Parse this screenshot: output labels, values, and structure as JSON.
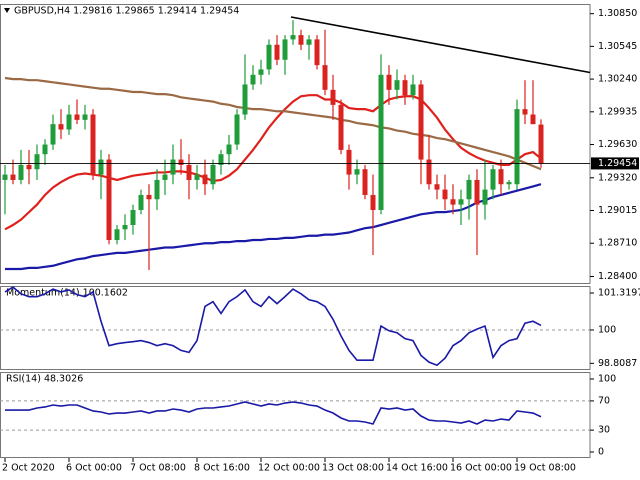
{
  "chart_data": [
    {
      "type": "candlestick",
      "title": "GBPUSD,H4  1.29816 1.29865 1.29414 1.29454",
      "categories": [
        "2 Oct 2020",
        null,
        null,
        null,
        null,
        null,
        null,
        null,
        "6 Oct 00:00",
        null,
        null,
        null,
        null,
        null,
        null,
        null,
        "7 Oct 08:00",
        null,
        null,
        null,
        null,
        null,
        null,
        null,
        "8 Oct 16:00",
        null,
        null,
        null,
        null,
        null,
        null,
        null,
        "12 Oct 00:00",
        null,
        null,
        null,
        null,
        null,
        null,
        null,
        "13 Oct 08:00",
        null,
        null,
        null,
        null,
        null,
        null,
        null,
        "14 Oct 16:00",
        null,
        null,
        null,
        null,
        null,
        null,
        null,
        "16 Oct 00:00",
        null,
        null,
        null,
        null,
        null,
        null,
        null,
        "19 Oct 08:00",
        null,
        null,
        null
      ],
      "open": [
        1.293,
        1.2935,
        1.293,
        1.2944,
        1.294,
        1.2954,
        1.2963,
        1.2982,
        1.2977,
        1.2991,
        1.2986,
        1.2991,
        1.2935,
        1.2949,
        1.2874,
        1.2884,
        1.2888,
        1.2902,
        1.2916,
        1.2912,
        1.293,
        1.2935,
        1.2949,
        1.2944,
        1.293,
        1.2935,
        1.2926,
        1.2944,
        1.2954,
        1.2963,
        1.2991,
        1.3019,
        1.3028,
        1.3033,
        1.3056,
        1.3042,
        1.3061,
        1.3065,
        1.3056,
        1.3061,
        1.3037,
        1.3014,
        1.3,
        1.2958,
        1.2935,
        1.294,
        1.2916,
        1.2902,
        1.3028,
        1.3014,
        1.3023,
        1.3009,
        1.3019,
        1.2949,
        1.2926,
        1.2921,
        1.2912,
        1.2907,
        1.2912,
        1.293,
        1.2907,
        1.2921,
        1.294,
        1.2926,
        1.2926,
        1.2996,
        1.2991,
        1.29816
      ],
      "high": [
        1.2944,
        1.2949,
        1.2958,
        1.2958,
        1.2963,
        1.2968,
        1.2991,
        1.2996,
        1.3,
        1.3005,
        1.3,
        1.2996,
        1.2958,
        1.2954,
        1.2888,
        1.2898,
        1.2907,
        1.2921,
        1.2926,
        1.294,
        1.2949,
        1.2963,
        1.2968,
        1.2954,
        1.2944,
        1.2949,
        1.2949,
        1.2958,
        1.2972,
        1.2996,
        1.3047,
        1.3037,
        1.3042,
        1.3061,
        1.3065,
        1.3065,
        1.3079,
        1.307,
        1.3065,
        1.3065,
        1.307,
        1.3028,
        1.3005,
        1.2963,
        1.2949,
        1.2944,
        1.2935,
        1.3047,
        1.3037,
        1.3033,
        1.3028,
        1.3028,
        1.3023,
        1.2972,
        1.2935,
        1.2935,
        1.2926,
        1.2921,
        1.2935,
        1.294,
        1.2949,
        1.2944,
        1.2949,
        1.293,
        1.3005,
        1.3023,
        1.3023,
        1.29865
      ],
      "low": [
        1.2898,
        1.2926,
        1.2926,
        1.2926,
        1.293,
        1.2944,
        1.2958,
        1.2968,
        1.2972,
        1.2982,
        1.2977,
        1.293,
        1.2912,
        1.287,
        1.287,
        1.2874,
        1.2879,
        1.2898,
        1.2846,
        1.2902,
        1.2916,
        1.2926,
        1.2935,
        1.2912,
        1.2921,
        1.2916,
        1.2921,
        1.2935,
        1.2944,
        1.2958,
        1.2986,
        1.3014,
        1.3019,
        1.3028,
        1.3037,
        1.3028,
        1.3056,
        1.3051,
        1.3042,
        1.3033,
        1.3009,
        1.2986,
        1.2954,
        1.2921,
        1.2926,
        1.2912,
        1.286,
        1.2898,
        1.3,
        1.3005,
        1.3,
        1.3005,
        1.2926,
        1.2921,
        1.2912,
        1.2902,
        1.2898,
        1.2888,
        1.2893,
        1.286,
        1.2893,
        1.2912,
        1.2916,
        1.2921,
        1.2921,
        1.2982,
        1.2982,
        1.29414
      ],
      "close": [
        1.2935,
        1.293,
        1.2944,
        1.294,
        1.2954,
        1.2963,
        1.2982,
        1.2977,
        1.2991,
        1.2986,
        1.2991,
        1.2935,
        1.2949,
        1.2874,
        1.2884,
        1.2888,
        1.2902,
        1.2916,
        1.2912,
        1.293,
        1.2935,
        1.2949,
        1.2944,
        1.293,
        1.2935,
        1.2926,
        1.2944,
        1.2954,
        1.2963,
        1.2991,
        1.3019,
        1.3028,
        1.3033,
        1.3056,
        1.3042,
        1.3061,
        1.3065,
        1.3056,
        1.3061,
        1.3037,
        1.3014,
        1.3,
        1.2958,
        1.2935,
        1.294,
        1.2916,
        1.2902,
        1.3028,
        1.3014,
        1.3023,
        1.3009,
        1.3019,
        1.2949,
        1.2926,
        1.2921,
        1.2912,
        1.2907,
        1.2912,
        1.293,
        1.2907,
        1.2921,
        1.294,
        1.2926,
        1.2928,
        1.2996,
        1.2991,
        1.2982,
        1.29454
      ],
      "up_color": "#1f9d3a",
      "down_color": "#d8231f",
      "lines": [
        {
          "color": "#e0201c",
          "values": [
            1.2884,
            1.2888,
            1.2893,
            1.29,
            1.2907,
            1.2916,
            1.2923,
            1.2928,
            1.2932,
            1.2935,
            1.2936,
            1.2935,
            1.2934,
            1.2932,
            1.293,
            1.2932,
            1.2934,
            1.2935,
            1.2936,
            1.2937,
            1.2937,
            1.2938,
            1.2938,
            1.2937,
            1.2935,
            1.2932,
            1.2929,
            1.293,
            1.2934,
            1.294,
            1.2949,
            1.2958,
            1.2968,
            1.2979,
            1.2988,
            1.2996,
            1.3003,
            1.3008,
            1.3009,
            1.3009,
            1.3005,
            1.3005,
            1.3002,
            1.2997,
            1.2996,
            1.2996,
            1.2994,
            1.3,
            1.3005,
            1.3007,
            1.3008,
            1.3008,
            1.3005,
            1.2997,
            1.2988,
            1.2977,
            1.2968,
            1.296,
            1.2955,
            1.2951,
            1.2948,
            1.2946,
            1.2944,
            1.2944,
            1.2949,
            1.2954,
            1.2956,
            1.295
          ]
        },
        {
          "color": "#9b6a45",
          "values": [
            1.3025,
            1.3024,
            1.3024,
            1.3023,
            1.3023,
            1.3022,
            1.3021,
            1.302,
            1.3019,
            1.3018,
            1.3017,
            1.3016,
            1.3015,
            1.3015,
            1.3014,
            1.3013,
            1.3012,
            1.3012,
            1.3011,
            1.301,
            1.301,
            1.3009,
            1.3007,
            1.3006,
            1.3005,
            1.3004,
            1.3003,
            1.3001,
            1.3,
            1.2998,
            1.2997,
            1.2996,
            1.2996,
            1.2995,
            1.2994,
            1.2994,
            1.2993,
            1.2992,
            1.2991,
            1.299,
            1.2989,
            1.2988,
            1.2986,
            1.2985,
            1.2983,
            1.2982,
            1.2981,
            1.2979,
            1.2978,
            1.2976,
            1.2975,
            1.2973,
            1.2972,
            1.2971,
            1.2969,
            1.2968,
            1.2966,
            1.2964,
            1.2962,
            1.296,
            1.2958,
            1.2956,
            1.2954,
            1.2952,
            1.2949,
            1.2946,
            1.2943,
            1.294
          ]
        },
        {
          "color": "#1a1aa8",
          "values": [
            1.2847,
            1.2847,
            1.2847,
            1.2848,
            1.2848,
            1.2849,
            1.285,
            1.2852,
            1.2854,
            1.2856,
            1.2857,
            1.2859,
            1.286,
            1.2861,
            1.2862,
            1.2862,
            1.2863,
            1.2864,
            1.2865,
            1.2866,
            1.2867,
            1.2867,
            1.2868,
            1.2869,
            1.287,
            1.2871,
            1.2871,
            1.2872,
            1.2872,
            1.2873,
            1.2873,
            1.2874,
            1.2874,
            1.2875,
            1.2875,
            1.2876,
            1.2876,
            1.2877,
            1.2878,
            1.2878,
            1.2879,
            1.2879,
            1.288,
            1.2881,
            1.2883,
            1.2885,
            1.2886,
            1.2888,
            1.289,
            1.2892,
            1.2894,
            1.2896,
            1.2898,
            1.2899,
            1.29,
            1.29,
            1.2901,
            1.2902,
            1.2905,
            1.2909,
            1.2911,
            1.2914,
            1.2916,
            1.2918,
            1.292,
            1.2922,
            1.2924,
            1.2926
          ]
        }
      ],
      "current_price": {
        "value": 1.29454,
        "label": "1.29454"
      },
      "ylim": [
        1.2833,
        1.3094
      ],
      "yticks": [
        {
          "value": 1.3085,
          "label": "1.30850"
        },
        1.30545,
        {
          "value": 1.3024,
          "label": "1.30240"
        },
        1.29935,
        {
          "value": 1.2963,
          "label": "1.29630"
        },
        {
          "value": 1.2932,
          "label": "1.29320"
        },
        1.29015,
        {
          "value": 1.2871,
          "label": "1.28710"
        },
        {
          "value": 1.284,
          "label": "1.28400"
        }
      ]
    },
    {
      "type": "line",
      "title": "Momentum(14) 100.1602",
      "color": "#1a1aa8",
      "values": [
        101.36,
        101.53,
        101.29,
        101.19,
        101.19,
        101.29,
        101.46,
        101.36,
        101.43,
        101.26,
        101.19,
        101.36,
        100.31,
        99.44,
        99.51,
        99.55,
        99.58,
        99.62,
        99.55,
        99.44,
        99.51,
        99.44,
        99.27,
        99.2,
        99.62,
        100.84,
        101.01,
        100.59,
        101.01,
        101.19,
        101.43,
        101.01,
        100.84,
        101.19,
        100.94,
        101.19,
        101.46,
        101.29,
        101.08,
        101.01,
        100.84,
        100.38,
        99.79,
        99.27,
        98.92,
        98.92,
        98.92,
        100.14,
        99.97,
        99.9,
        99.69,
        99.62,
        99.09,
        98.85,
        98.74,
        98.99,
        99.44,
        99.62,
        99.9,
        100.03,
        100.14,
        99.02,
        99.44,
        99.62,
        99.69,
        100.24,
        100.31,
        100.1602
      ],
      "levels": [
        100
      ],
      "ylim": [
        98.57,
        101.57
      ],
      "yticks": [
        101.3197,
        100,
        98.8087
      ]
    },
    {
      "type": "line",
      "title": "RSI(14) 48.3026",
      "color": "#1a1aa8",
      "values": [
        57.5,
        57.5,
        57.5,
        57.5,
        60.3,
        61.7,
        64.4,
        63.0,
        64.4,
        64.4,
        60.3,
        56.2,
        54.8,
        52.1,
        53.4,
        53.4,
        54.8,
        56.2,
        53.4,
        56.2,
        56.2,
        58.9,
        57.5,
        54.8,
        58.9,
        60.3,
        60.3,
        61.7,
        63.0,
        65.8,
        68.5,
        65.8,
        63.0,
        65.8,
        64.4,
        67.1,
        68.5,
        67.1,
        64.4,
        63.0,
        57.5,
        53.4,
        46.6,
        42.5,
        42.5,
        41.1,
        38.4,
        60.3,
        58.9,
        60.3,
        57.5,
        58.9,
        49.3,
        43.8,
        42.5,
        42.5,
        41.1,
        39.7,
        42.5,
        38.4,
        43.8,
        42.5,
        45.2,
        43.8,
        56.2,
        54.8,
        53.4,
        48.3026
      ],
      "levels": [
        70,
        30
      ],
      "ylim": [
        -8.2,
        109.6
      ],
      "yticks": [
        100,
        70,
        30,
        0
      ]
    }
  ]
}
